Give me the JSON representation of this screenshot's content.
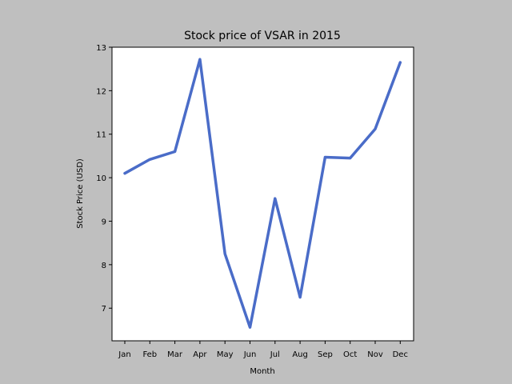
{
  "chart_data": {
    "type": "line",
    "title": "Stock price of VSAR in 2015",
    "xlabel": "Month",
    "ylabel": "Stock Price (USD)",
    "categories": [
      "Jan",
      "Feb",
      "Mar",
      "Apr",
      "May",
      "Jun",
      "Jul",
      "Aug",
      "Sep",
      "Oct",
      "Nov",
      "Dec"
    ],
    "values": [
      10.1,
      10.42,
      10.6,
      12.72,
      8.25,
      6.56,
      9.52,
      7.25,
      10.47,
      10.45,
      11.12,
      12.65
    ],
    "ylim": [
      6.25,
      13.0
    ],
    "yticks": [
      7,
      8,
      9,
      10,
      11,
      12,
      13
    ],
    "grid": false,
    "line_color": "#4a6cc8"
  }
}
